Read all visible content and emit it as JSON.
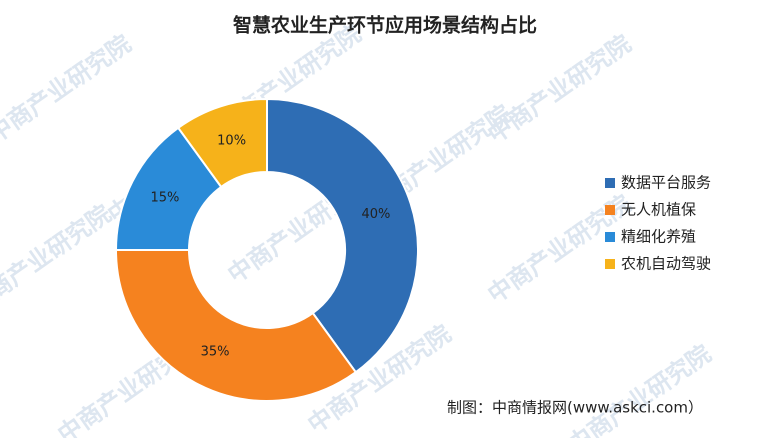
{
  "chart_data": {
    "type": "donut",
    "title": "智慧农业生产环节应用场景结构占比",
    "categories": [
      "数据平台服务",
      "无人机植保",
      "精细化养殖",
      "农机自动驾驶"
    ],
    "values": [
      40,
      35,
      15,
      10
    ],
    "value_labels": [
      "40%",
      "35%",
      "15%",
      "10%"
    ],
    "colors": [
      "#2e6db4",
      "#f5821f",
      "#2a8bd8",
      "#f6b21a"
    ],
    "legend": "right",
    "source": "制图：中商情报网(www.askci.com）",
    "watermark": "中商产业研究院"
  }
}
